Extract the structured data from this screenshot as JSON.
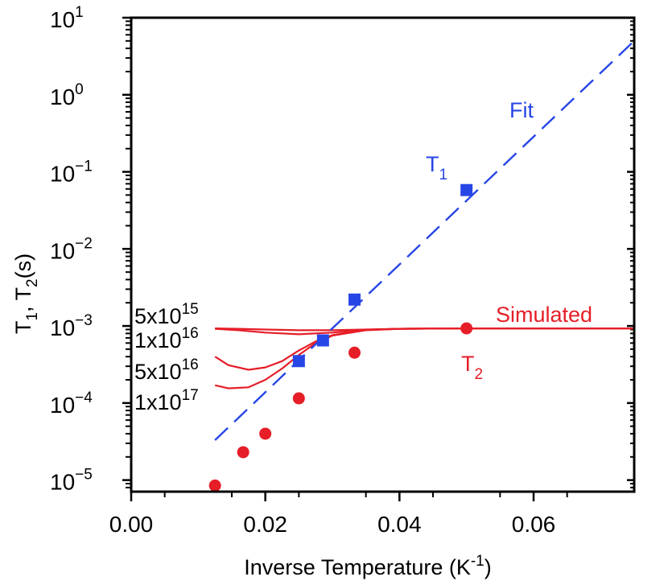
{
  "chart_data": {
    "type": "scatter",
    "title": "",
    "xlabel": {
      "text": "Inverse Temperature (K",
      "sup": "-1",
      "close": ")"
    },
    "ylabel": {
      "a": "T",
      "a_sub": "1",
      "sep": ", ",
      "b": "T",
      "b_sub": "2",
      "unit": "(s)"
    },
    "xlim": [
      0.0,
      0.075
    ],
    "ylim_log10": [
      -5.15,
      1.0
    ],
    "scale_y": "log",
    "x_ticks": [
      "0.00",
      "0.02",
      "0.04",
      "0.06"
    ],
    "x_tick_values": [
      0.0,
      0.02,
      0.04,
      0.06
    ],
    "y_ticks": [
      {
        "base": "10",
        "exp": "1",
        "value": 1
      },
      {
        "base": "10",
        "exp": "0",
        "value": 0
      },
      {
        "base": "10",
        "exp": "−1",
        "value": -1
      },
      {
        "base": "10",
        "exp": "−2",
        "value": -2
      },
      {
        "base": "10",
        "exp": "−3",
        "value": -3
      },
      {
        "base": "10",
        "exp": "−4",
        "value": -4
      },
      {
        "base": "10",
        "exp": "−5",
        "value": -5
      }
    ],
    "colors": {
      "t1": "#2646e6",
      "t2": "#e61e28",
      "axis": "#000000"
    },
    "series": [
      {
        "name": "T1",
        "label": {
          "text": "T",
          "sub": "1"
        },
        "marker": "square",
        "x": [
          0.025,
          0.0286,
          0.0333,
          0.05
        ],
        "y": [
          0.00035,
          0.00065,
          0.0022,
          0.058
        ]
      },
      {
        "name": "T2",
        "label": {
          "text": "T",
          "sub": "2"
        },
        "marker": "circle",
        "x": [
          0.0125,
          0.0167,
          0.02,
          0.025,
          0.0333,
          0.05
        ],
        "y": [
          8.5e-06,
          2.3e-05,
          4e-05,
          0.000115,
          0.00045,
          0.00093
        ]
      }
    ],
    "fit": {
      "label": "Fit",
      "x": [
        0.0125,
        0.075
      ],
      "y": [
        3.3e-05,
        5.0
      ]
    },
    "simulated": {
      "label": "Simulated",
      "curves": [
        {
          "label": {
            "mant": "5x10",
            "exp": "15"
          },
          "x": [
            0.0125,
            0.016,
            0.02,
            0.025,
            0.03,
            0.035,
            0.04,
            0.05,
            0.075
          ],
          "y": [
            0.00093,
            0.00092,
            0.0009,
            0.00088,
            0.00088,
            0.0009,
            0.00092,
            0.00093,
            0.00093
          ]
        },
        {
          "label": {
            "mant": "1x10",
            "exp": "16"
          },
          "x": [
            0.0125,
            0.016,
            0.02,
            0.025,
            0.03,
            0.035,
            0.04,
            0.05,
            0.075
          ],
          "y": [
            0.00092,
            0.00088,
            0.00082,
            0.00078,
            0.00082,
            0.00089,
            0.00092,
            0.00093,
            0.00093
          ]
        },
        {
          "label": {
            "mant": "5x10",
            "exp": "16"
          },
          "x": [
            0.0125,
            0.0145,
            0.0175,
            0.02,
            0.0225,
            0.025,
            0.0275,
            0.03,
            0.035,
            0.04,
            0.05,
            0.075
          ],
          "y": [
            0.0004,
            0.00031,
            0.00027,
            0.00029,
            0.00035,
            0.00048,
            0.00063,
            0.00076,
            0.00089,
            0.00092,
            0.00093,
            0.00093
          ]
        },
        {
          "label": {
            "mant": "1x10",
            "exp": "17"
          },
          "x": [
            0.0125,
            0.0145,
            0.0175,
            0.02,
            0.0225,
            0.025,
            0.0275,
            0.03,
            0.035,
            0.04,
            0.05,
            0.075
          ],
          "y": [
            0.00017,
            0.000155,
            0.00016,
            0.0002,
            0.00028,
            0.00042,
            0.0006,
            0.00075,
            0.00088,
            0.00092,
            0.00093,
            0.00093
          ]
        }
      ]
    }
  }
}
